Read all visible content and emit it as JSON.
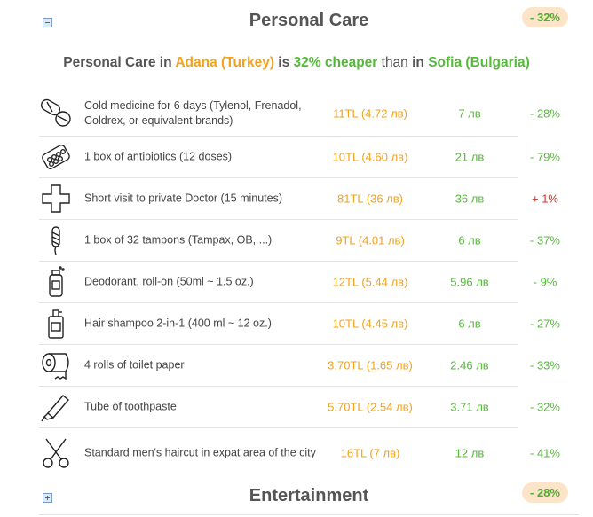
{
  "personal_care": {
    "title": "Personal Care",
    "badge": "- 32%",
    "summary": {
      "prefix": "Personal Care in ",
      "city1": "Adana (Turkey)",
      "is": " is ",
      "pct": "32% cheaper",
      "than": " than ",
      "in": "in ",
      "city2": "Sofia (Bulgaria)"
    },
    "rows": [
      {
        "icon": "pills-icon",
        "label": "Cold medicine for 6 days (Tylenol, Frenadol, Coldrex, or equivalent brands)",
        "local": "11TL (4.72 лв)",
        "other": "7 лв",
        "diff": "- 28%",
        "direction": "down"
      },
      {
        "icon": "pill-pack-icon",
        "label": "1 box of antibiotics (12 doses)",
        "local": "10TL (4.60 лв)",
        "other": "21 лв",
        "diff": "- 79%",
        "direction": "down"
      },
      {
        "icon": "medical-cross-icon",
        "label": "Short visit to private Doctor (15 minutes)",
        "local": "81TL (36 лв)",
        "other": "36 лв",
        "diff": "+ 1%",
        "direction": "up"
      },
      {
        "icon": "tampon-icon",
        "label": "1 box of 32 tampons (Tampax, OB, ...)",
        "local": "9TL (4.01 лв)",
        "other": "6 лв",
        "diff": "- 37%",
        "direction": "down"
      },
      {
        "icon": "deodorant-icon",
        "label": "Deodorant, roll-on (50ml ~ 1.5 oz.)",
        "local": "12TL (5.44 лв)",
        "other": "5.96 лв",
        "diff": "- 9%",
        "direction": "down"
      },
      {
        "icon": "shampoo-icon",
        "label": "Hair shampoo 2-in-1 (400 ml ~ 12 oz.)",
        "local": "10TL (4.45 лв)",
        "other": "6 лв",
        "diff": "- 27%",
        "direction": "down"
      },
      {
        "icon": "toilet-paper-icon",
        "label": "4 rolls of toilet paper",
        "local": "3.70TL (1.65 лв)",
        "other": "2.46 лв",
        "diff": "- 33%",
        "direction": "down"
      },
      {
        "icon": "toothpaste-icon",
        "label": "Tube of toothpaste",
        "local": "5.70TL (2.54 лв)",
        "other": "3.71 лв",
        "diff": "- 32%",
        "direction": "down"
      },
      {
        "icon": "scissors-icon",
        "label": "Standard men's haircut in expat area of the city",
        "local": "16TL (7 лв)",
        "other": "12 лв",
        "diff": "- 41%",
        "direction": "down"
      }
    ]
  },
  "entertainment": {
    "title": "Entertainment",
    "badge": "- 28%"
  }
}
